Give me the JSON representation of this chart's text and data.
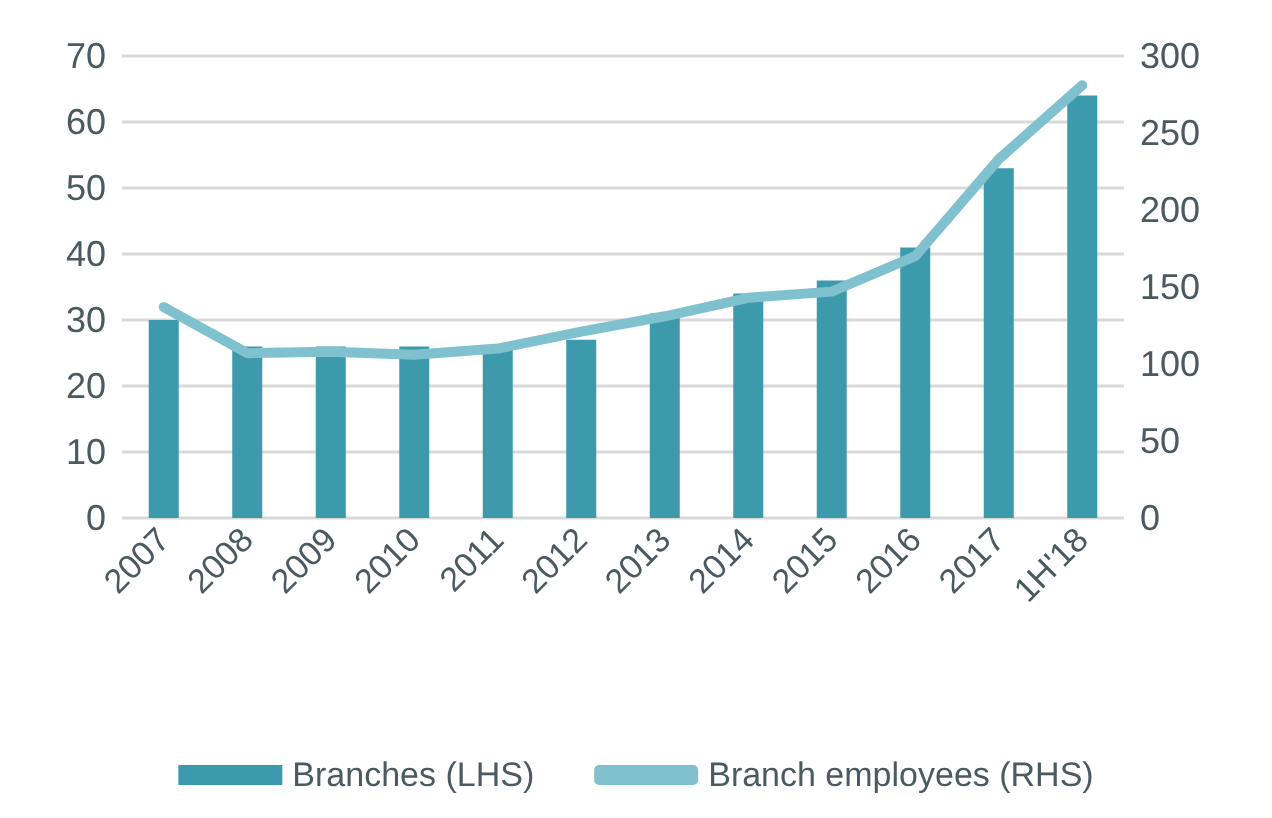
{
  "chart_data": {
    "type": "bar",
    "categories": [
      "2007",
      "2008",
      "2009",
      "2010",
      "2011",
      "2012",
      "2013",
      "2014",
      "2015",
      "2016",
      "2017",
      "1H'18"
    ],
    "series": [
      {
        "name": "Branches (LHS)",
        "color": "#3d9aad",
        "values": [
          30,
          26,
          26,
          26,
          26,
          27,
          31,
          34,
          36,
          41,
          53,
          64
        ]
      },
      {
        "name": "Branch employees (RHS)",
        "type": "line",
        "axis": "y2",
        "color": "#80c1cf",
        "values": [
          137,
          107,
          108,
          106,
          110,
          121,
          131,
          143,
          147,
          170,
          233,
          281
        ]
      }
    ],
    "ylim": [
      0,
      70
    ],
    "yticks": [
      0,
      10,
      20,
      30,
      40,
      50,
      60,
      70
    ],
    "y2lim": [
      0,
      300
    ],
    "y2ticks": [
      0,
      50,
      100,
      150,
      200,
      250,
      300
    ],
    "grid": "y",
    "legend": "bottom",
    "marker": "none",
    "line_style": "solid"
  }
}
